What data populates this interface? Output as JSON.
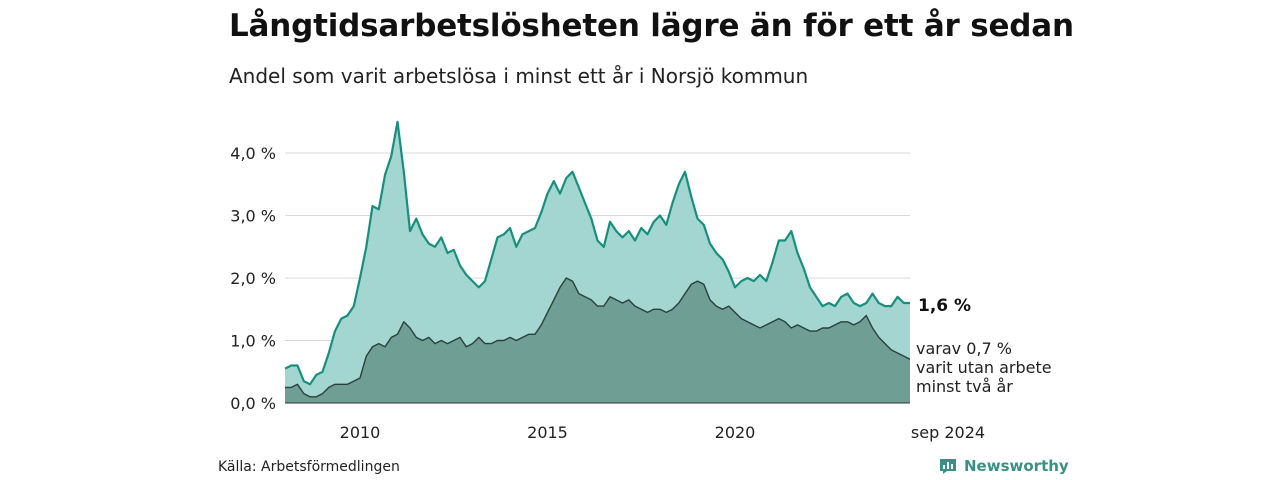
{
  "title": "Långtidsarbetslösheten lägre än för ett år sedan",
  "subtitle": "Andel som varit arbetslösa i minst ett år i Norsjö kommun",
  "source": "Källa: Arbetsförmedlingen",
  "brand": {
    "name": "Newsworthy"
  },
  "colors": {
    "series1_fill": "#a3d6d0",
    "series1_line": "#178f7e",
    "series2_fill": "#6f9f94",
    "series2_line": "#2c3f3a",
    "grid": "#d9d9d9",
    "brand": "#3a8f86"
  },
  "annotations": {
    "main_value": "1,6 %",
    "sub_lines": [
      "varav 0,7 %",
      "varit utan arbete",
      "minst två år"
    ]
  },
  "chart_data": {
    "type": "area",
    "title": "Långtidsarbetslösheten lägre än för ett år sedan",
    "subtitle": "Andel som varit arbetslösa i minst ett år i Norsjö kommun",
    "xlabel": "",
    "ylabel": "",
    "ylim": [
      0,
      4.6
    ],
    "xlim": [
      "2008-01",
      "2024-09"
    ],
    "yticks": [
      {
        "value": 0,
        "label": "0,0 %"
      },
      {
        "value": 1,
        "label": "1,0 %"
      },
      {
        "value": 2,
        "label": "2,0 %"
      },
      {
        "value": 3,
        "label": "3,0 %"
      },
      {
        "value": 4,
        "label": "4,0 %"
      }
    ],
    "xticks": [
      {
        "value": "2010-01",
        "label": "2010"
      },
      {
        "value": "2015-01",
        "label": "2015"
      },
      {
        "value": "2020-01",
        "label": "2020"
      },
      {
        "value": "2024-09",
        "label": "sep 2024"
      }
    ],
    "grid": true,
    "series": [
      {
        "values_by_date": [
          [
            "2008-01",
            0.55
          ],
          [
            "2008-03",
            0.6
          ],
          [
            "2008-05",
            0.6
          ],
          [
            "2008-07",
            0.35
          ],
          [
            "2008-09",
            0.3
          ],
          [
            "2008-11",
            0.45
          ],
          [
            "2009-01",
            0.5
          ],
          [
            "2009-03",
            0.8
          ],
          [
            "2009-05",
            1.15
          ],
          [
            "2009-07",
            1.35
          ],
          [
            "2009-09",
            1.4
          ],
          [
            "2009-11",
            1.55
          ],
          [
            "2010-01",
            2.0
          ],
          [
            "2010-03",
            2.5
          ],
          [
            "2010-05",
            3.15
          ],
          [
            "2010-07",
            3.1
          ],
          [
            "2010-09",
            3.65
          ],
          [
            "2010-11",
            3.95
          ],
          [
            "2011-01",
            4.5
          ],
          [
            "2011-03",
            3.7
          ],
          [
            "2011-05",
            2.75
          ],
          [
            "2011-07",
            2.95
          ],
          [
            "2011-09",
            2.7
          ],
          [
            "2011-11",
            2.55
          ],
          [
            "2012-01",
            2.5
          ],
          [
            "2012-03",
            2.65
          ],
          [
            "2012-05",
            2.4
          ],
          [
            "2012-07",
            2.45
          ],
          [
            "2012-09",
            2.2
          ],
          [
            "2012-11",
            2.05
          ],
          [
            "2013-01",
            1.95
          ],
          [
            "2013-03",
            1.85
          ],
          [
            "2013-05",
            1.95
          ],
          [
            "2013-07",
            2.3
          ],
          [
            "2013-09",
            2.65
          ],
          [
            "2013-11",
            2.7
          ],
          [
            "2014-01",
            2.8
          ],
          [
            "2014-03",
            2.5
          ],
          [
            "2014-05",
            2.7
          ],
          [
            "2014-07",
            2.75
          ],
          [
            "2014-09",
            2.8
          ],
          [
            "2014-11",
            3.05
          ],
          [
            "2015-01",
            3.35
          ],
          [
            "2015-03",
            3.55
          ],
          [
            "2015-05",
            3.35
          ],
          [
            "2015-07",
            3.6
          ],
          [
            "2015-09",
            3.7
          ],
          [
            "2015-11",
            3.45
          ],
          [
            "2016-01",
            3.2
          ],
          [
            "2016-03",
            2.95
          ],
          [
            "2016-05",
            2.6
          ],
          [
            "2016-07",
            2.5
          ],
          [
            "2016-09",
            2.9
          ],
          [
            "2016-11",
            2.75
          ],
          [
            "2017-01",
            2.65
          ],
          [
            "2017-03",
            2.75
          ],
          [
            "2017-05",
            2.6
          ],
          [
            "2017-07",
            2.8
          ],
          [
            "2017-09",
            2.7
          ],
          [
            "2017-11",
            2.9
          ],
          [
            "2018-01",
            3.0
          ],
          [
            "2018-03",
            2.85
          ],
          [
            "2018-05",
            3.2
          ],
          [
            "2018-07",
            3.5
          ],
          [
            "2018-09",
            3.7
          ],
          [
            "2018-11",
            3.3
          ],
          [
            "2019-01",
            2.95
          ],
          [
            "2019-03",
            2.85
          ],
          [
            "2019-05",
            2.55
          ],
          [
            "2019-07",
            2.4
          ],
          [
            "2019-09",
            2.3
          ],
          [
            "2019-11",
            2.1
          ],
          [
            "2020-01",
            1.85
          ],
          [
            "2020-03",
            1.95
          ],
          [
            "2020-05",
            2.0
          ],
          [
            "2020-07",
            1.95
          ],
          [
            "2020-09",
            2.05
          ],
          [
            "2020-11",
            1.95
          ],
          [
            "2021-01",
            2.25
          ],
          [
            "2021-03",
            2.6
          ],
          [
            "2021-05",
            2.6
          ],
          [
            "2021-07",
            2.75
          ],
          [
            "2021-09",
            2.4
          ],
          [
            "2021-11",
            2.15
          ],
          [
            "2022-01",
            1.85
          ],
          [
            "2022-03",
            1.7
          ],
          [
            "2022-05",
            1.55
          ],
          [
            "2022-07",
            1.6
          ],
          [
            "2022-09",
            1.55
          ],
          [
            "2022-11",
            1.7
          ],
          [
            "2023-01",
            1.75
          ],
          [
            "2023-03",
            1.6
          ],
          [
            "2023-05",
            1.55
          ],
          [
            "2023-07",
            1.6
          ],
          [
            "2023-09",
            1.75
          ],
          [
            "2023-11",
            1.6
          ],
          [
            "2024-01",
            1.55
          ],
          [
            "2024-03",
            1.55
          ],
          [
            "2024-05",
            1.7
          ],
          [
            "2024-07",
            1.6
          ],
          [
            "2024-09",
            1.6
          ]
        ]
      },
      {
        "values_by_date": [
          [
            "2008-01",
            0.25
          ],
          [
            "2008-03",
            0.25
          ],
          [
            "2008-05",
            0.3
          ],
          [
            "2008-07",
            0.15
          ],
          [
            "2008-09",
            0.1
          ],
          [
            "2008-11",
            0.1
          ],
          [
            "2009-01",
            0.15
          ],
          [
            "2009-03",
            0.25
          ],
          [
            "2009-05",
            0.3
          ],
          [
            "2009-07",
            0.3
          ],
          [
            "2009-09",
            0.3
          ],
          [
            "2009-11",
            0.35
          ],
          [
            "2010-01",
            0.4
          ],
          [
            "2010-03",
            0.75
          ],
          [
            "2010-05",
            0.9
          ],
          [
            "2010-07",
            0.95
          ],
          [
            "2010-09",
            0.9
          ],
          [
            "2010-11",
            1.05
          ],
          [
            "2011-01",
            1.1
          ],
          [
            "2011-03",
            1.3
          ],
          [
            "2011-05",
            1.2
          ],
          [
            "2011-07",
            1.05
          ],
          [
            "2011-09",
            1.0
          ],
          [
            "2011-11",
            1.05
          ],
          [
            "2012-01",
            0.95
          ],
          [
            "2012-03",
            1.0
          ],
          [
            "2012-05",
            0.95
          ],
          [
            "2012-07",
            1.0
          ],
          [
            "2012-09",
            1.05
          ],
          [
            "2012-11",
            0.9
          ],
          [
            "2013-01",
            0.95
          ],
          [
            "2013-03",
            1.05
          ],
          [
            "2013-05",
            0.95
          ],
          [
            "2013-07",
            0.95
          ],
          [
            "2013-09",
            1.0
          ],
          [
            "2013-11",
            1.0
          ],
          [
            "2014-01",
            1.05
          ],
          [
            "2014-03",
            1.0
          ],
          [
            "2014-05",
            1.05
          ],
          [
            "2014-07",
            1.1
          ],
          [
            "2014-09",
            1.1
          ],
          [
            "2014-11",
            1.25
          ],
          [
            "2015-01",
            1.45
          ],
          [
            "2015-03",
            1.65
          ],
          [
            "2015-05",
            1.85
          ],
          [
            "2015-07",
            2.0
          ],
          [
            "2015-09",
            1.95
          ],
          [
            "2015-11",
            1.75
          ],
          [
            "2016-01",
            1.7
          ],
          [
            "2016-03",
            1.65
          ],
          [
            "2016-05",
            1.55
          ],
          [
            "2016-07",
            1.55
          ],
          [
            "2016-09",
            1.7
          ],
          [
            "2016-11",
            1.65
          ],
          [
            "2017-01",
            1.6
          ],
          [
            "2017-03",
            1.65
          ],
          [
            "2017-05",
            1.55
          ],
          [
            "2017-07",
            1.5
          ],
          [
            "2017-09",
            1.45
          ],
          [
            "2017-11",
            1.5
          ],
          [
            "2018-01",
            1.5
          ],
          [
            "2018-03",
            1.45
          ],
          [
            "2018-05",
            1.5
          ],
          [
            "2018-07",
            1.6
          ],
          [
            "2018-09",
            1.75
          ],
          [
            "2018-11",
            1.9
          ],
          [
            "2019-01",
            1.95
          ],
          [
            "2019-03",
            1.9
          ],
          [
            "2019-05",
            1.65
          ],
          [
            "2019-07",
            1.55
          ],
          [
            "2019-09",
            1.5
          ],
          [
            "2019-11",
            1.55
          ],
          [
            "2020-01",
            1.45
          ],
          [
            "2020-03",
            1.35
          ],
          [
            "2020-05",
            1.3
          ],
          [
            "2020-07",
            1.25
          ],
          [
            "2020-09",
            1.2
          ],
          [
            "2020-11",
            1.25
          ],
          [
            "2021-01",
            1.3
          ],
          [
            "2021-03",
            1.35
          ],
          [
            "2021-05",
            1.3
          ],
          [
            "2021-07",
            1.2
          ],
          [
            "2021-09",
            1.25
          ],
          [
            "2021-11",
            1.2
          ],
          [
            "2022-01",
            1.15
          ],
          [
            "2022-03",
            1.15
          ],
          [
            "2022-05",
            1.2
          ],
          [
            "2022-07",
            1.2
          ],
          [
            "2022-09",
            1.25
          ],
          [
            "2022-11",
            1.3
          ],
          [
            "2023-01",
            1.3
          ],
          [
            "2023-03",
            1.25
          ],
          [
            "2023-05",
            1.3
          ],
          [
            "2023-07",
            1.4
          ],
          [
            "2023-09",
            1.2
          ],
          [
            "2023-11",
            1.05
          ],
          [
            "2024-01",
            0.95
          ],
          [
            "2024-03",
            0.85
          ],
          [
            "2024-05",
            0.8
          ],
          [
            "2024-07",
            0.75
          ],
          [
            "2024-09",
            0.7
          ]
        ]
      }
    ]
  }
}
